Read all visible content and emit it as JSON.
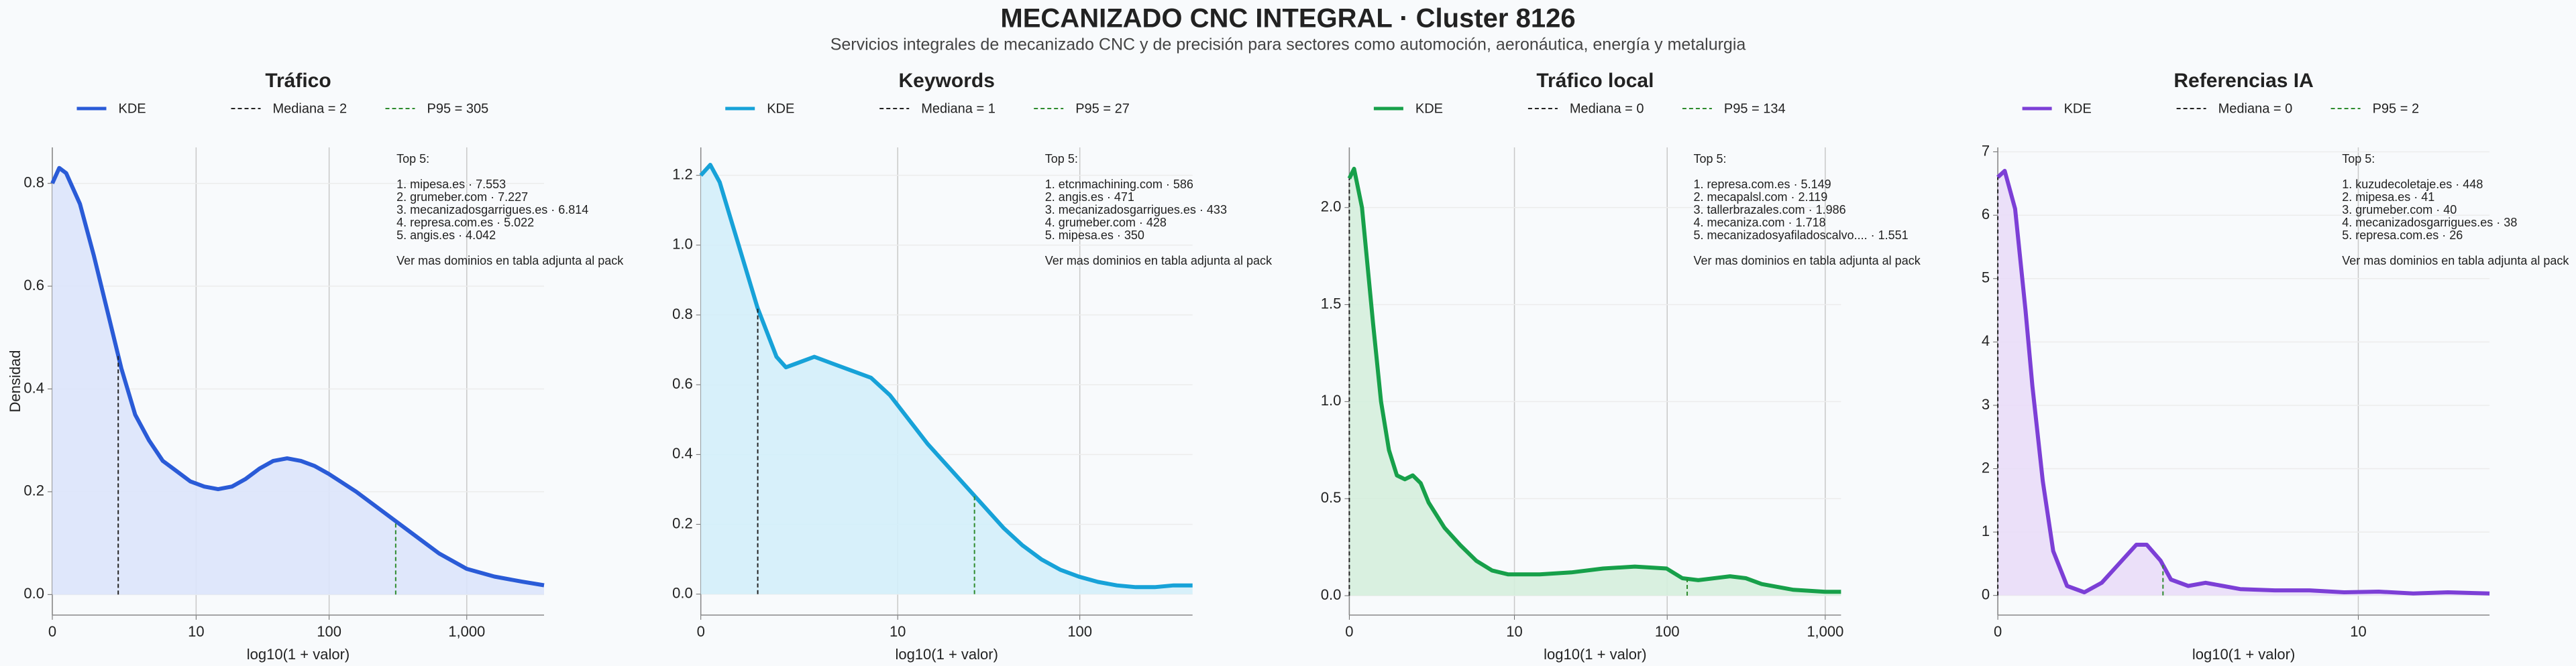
{
  "title": "MECANIZADO CNC INTEGRAL · Cluster 8126",
  "subtitle": "Servicios integrales de mecanizado CNC y de precisión para sectores como automoción, aeronáutica, energía y metalurgia",
  "chart_data": [
    {
      "type": "line",
      "title": "Tráfico",
      "xlabel": "log10(1 + valor)",
      "ylabel": "Densidad",
      "x": [
        0,
        0.05,
        0.1,
        0.2,
        0.3,
        0.4,
        0.5,
        0.6,
        0.7,
        0.8,
        0.9,
        1.0,
        1.1,
        1.2,
        1.3,
        1.4,
        1.5,
        1.6,
        1.7,
        1.8,
        1.9,
        2.0,
        2.2,
        2.4,
        2.6,
        2.8,
        3.0,
        3.2,
        3.4,
        3.56
      ],
      "series": [
        {
          "name": "KDE",
          "color": "#2a5bd7",
          "fill": "#dbe4fb",
          "values": [
            0.8,
            0.83,
            0.82,
            0.76,
            0.66,
            0.55,
            0.44,
            0.35,
            0.3,
            0.26,
            0.24,
            0.22,
            0.21,
            0.205,
            0.21,
            0.225,
            0.245,
            0.26,
            0.265,
            0.26,
            0.25,
            0.235,
            0.2,
            0.16,
            0.12,
            0.08,
            0.05,
            0.035,
            0.025,
            0.018
          ]
        }
      ],
      "markers": [
        {
          "name": "Mediana = 2",
          "x": 0.477,
          "color": "#222222"
        },
        {
          "name": "P95 = 305",
          "x": 2.486,
          "color": "#2e8b2e"
        }
      ],
      "xlim": [
        0,
        3.56
      ],
      "xticks": [
        0,
        {
          "value": 1.041,
          "label": "10"
        },
        {
          "value": 2.004,
          "label": "100"
        },
        {
          "value": 3.0004,
          "label": "1,000"
        }
      ],
      "ylim": [
        -0.04,
        0.87
      ],
      "yticks": [
        {
          "value": 0,
          "label": "0.0"
        },
        0.2,
        0.4,
        0.6,
        0.8
      ],
      "grid": true,
      "annotation": [
        "Top 5:",
        "1. mipesa.es · 7.553",
        "2. grumeber.com · 7.227",
        "3. mecanizadosgarrigues.es · 6.814",
        "4. represa.com.es · 5.022",
        "5. angis.es · 4.042",
        "Ver mas dominios en tabla adjunta al pack"
      ]
    },
    {
      "type": "line",
      "title": "Keywords",
      "xlabel": "log10(1 + valor)",
      "x": [
        0,
        0.05,
        0.1,
        0.2,
        0.3,
        0.4,
        0.45,
        0.5,
        0.6,
        0.7,
        0.8,
        0.9,
        1.0,
        1.1,
        1.2,
        1.3,
        1.4,
        1.5,
        1.6,
        1.7,
        1.8,
        1.9,
        2.0,
        2.1,
        2.2,
        2.3,
        2.4,
        2.5,
        2.6
      ],
      "series": [
        {
          "name": "KDE",
          "color": "#17a2d8",
          "fill": "#d3eef9",
          "values": [
            1.2,
            1.23,
            1.18,
            1.0,
            0.82,
            0.68,
            0.65,
            0.66,
            0.68,
            0.66,
            0.64,
            0.62,
            0.57,
            0.5,
            0.43,
            0.37,
            0.31,
            0.25,
            0.19,
            0.14,
            0.1,
            0.07,
            0.05,
            0.035,
            0.025,
            0.02,
            0.02,
            0.025,
            0.025
          ]
        }
      ],
      "markers": [
        {
          "name": "Mediana = 1",
          "x": 0.301,
          "color": "#222222"
        },
        {
          "name": "P95 = 27",
          "x": 1.447,
          "color": "#2e8b2e"
        }
      ],
      "xlim": [
        0,
        2.6
      ],
      "xticks": [
        0,
        {
          "value": 1.041,
          "label": "10"
        },
        {
          "value": 2.004,
          "label": "100"
        }
      ],
      "ylim": [
        -0.06,
        1.28
      ],
      "yticks": [
        {
          "value": 0,
          "label": "0.0"
        },
        0.2,
        0.4,
        0.6,
        0.8,
        {
          "value": 1,
          "label": "1.0"
        },
        1.2
      ],
      "grid": true,
      "annotation": [
        "Top 5:",
        "1. etcnmachining.com · 586",
        "2. angis.es · 471",
        "3. mecanizadosgarrigues.es · 433",
        "4. grumeber.com · 428",
        "5. mipesa.es · 350",
        "Ver mas dominios en tabla adjunta al pack"
      ]
    },
    {
      "type": "line",
      "title": "Tráfico local",
      "xlabel": "log10(1 + valor)",
      "x": [
        0,
        0.03,
        0.08,
        0.15,
        0.2,
        0.25,
        0.3,
        0.35,
        0.4,
        0.45,
        0.5,
        0.6,
        0.7,
        0.8,
        0.9,
        1.0,
        1.2,
        1.4,
        1.6,
        1.8,
        2.0,
        2.1,
        2.2,
        2.4,
        2.5,
        2.6,
        2.8,
        3.0,
        3.1
      ],
      "series": [
        {
          "name": "KDE",
          "color": "#17a04a",
          "fill": "#d5eedd",
          "values": [
            2.15,
            2.2,
            2.0,
            1.4,
            1.0,
            0.75,
            0.62,
            0.6,
            0.62,
            0.58,
            0.48,
            0.35,
            0.26,
            0.18,
            0.13,
            0.11,
            0.11,
            0.12,
            0.14,
            0.15,
            0.14,
            0.09,
            0.08,
            0.1,
            0.09,
            0.06,
            0.03,
            0.02,
            0.02
          ]
        }
      ],
      "markers": [
        {
          "name": "Mediana = 0",
          "x": 0,
          "color": "#222222"
        },
        {
          "name": "P95 = 134",
          "x": 2.13,
          "color": "#2e8b2e"
        }
      ],
      "xlim": [
        0,
        3.1
      ],
      "xticks": [
        0,
        {
          "value": 1.041,
          "label": "10"
        },
        {
          "value": 2.004,
          "label": "100"
        },
        {
          "value": 3.0004,
          "label": "1,000"
        }
      ],
      "ylim": [
        -0.1,
        2.31
      ],
      "yticks": [
        {
          "value": 0,
          "label": "0.0"
        },
        0.5,
        {
          "value": 1,
          "label": "1.0"
        },
        1.5,
        {
          "value": 2,
          "label": "2.0"
        }
      ],
      "grid": true,
      "annotation": [
        "Top 5:",
        "1. represa.com.es · 5.149",
        "2. mecapalsl.com · 2.119",
        "3. tallerbrazales.com · 1.986",
        "4. mecaniza.com · 1.718",
        "5. mecanizadosyafiladoscalvo.... · 1.551",
        "Ver mas dominios en tabla adjunta al pack"
      ]
    },
    {
      "type": "line",
      "title": "Referencias IA",
      "xlabel": "log10(1 + valor)",
      "x": [
        0,
        0.02,
        0.05,
        0.08,
        0.1,
        0.13,
        0.16,
        0.2,
        0.25,
        0.3,
        0.35,
        0.4,
        0.43,
        0.47,
        0.5,
        0.55,
        0.6,
        0.65,
        0.7,
        0.8,
        0.9,
        1.0,
        1.1,
        1.2,
        1.3,
        1.42
      ],
      "series": [
        {
          "name": "KDE",
          "color": "#7c3fd6",
          "fill": "#e9ddf8",
          "values": [
            6.6,
            6.7,
            6.1,
            4.5,
            3.3,
            1.8,
            0.7,
            0.15,
            0.05,
            0.2,
            0.5,
            0.8,
            0.8,
            0.55,
            0.25,
            0.15,
            0.2,
            0.15,
            0.1,
            0.08,
            0.08,
            0.05,
            0.06,
            0.03,
            0.05,
            0.03
          ]
        }
      ],
      "markers": [
        {
          "name": "Mediana = 0",
          "x": 0,
          "color": "#222222"
        },
        {
          "name": "P95 = 2",
          "x": 0.477,
          "color": "#2e8b2e"
        }
      ],
      "xlim": [
        0,
        1.42
      ],
      "xticks": [
        0,
        {
          "value": 1.041,
          "label": "10"
        }
      ],
      "ylim": [
        -0.31,
        7.07
      ],
      "yticks": [
        0,
        1,
        2,
        3,
        4,
        5,
        6,
        7
      ],
      "grid": true,
      "annotation": [
        "Top 5:",
        "1. kuzudecoletaje.es · 448",
        "2. mipesa.es · 41",
        "3. grumeber.com · 40",
        "4. mecanizadosgarrigues.es · 38",
        "5. represa.com.es · 26",
        "Ver mas dominios en tabla adjunta al pack"
      ]
    }
  ]
}
